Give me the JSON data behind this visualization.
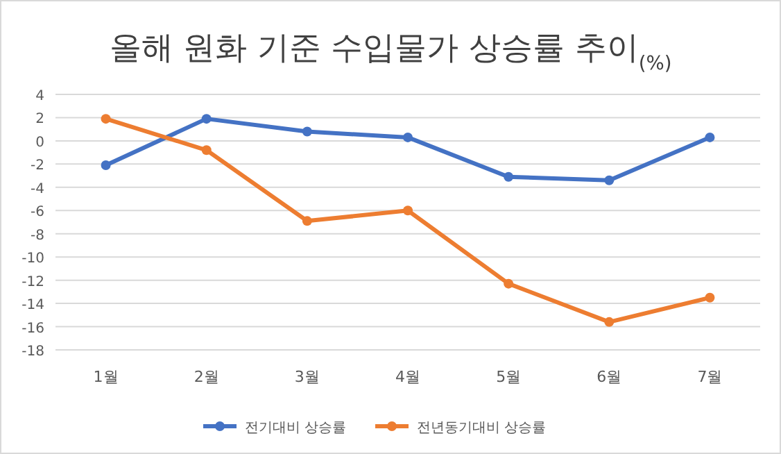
{
  "chart_data": {
    "type": "line",
    "title": "올해 원화 기준 수입물가 상승률 추이$_{(%)}$",
    "categories": [
      "1월",
      "2월",
      "3월",
      "4월",
      "5월",
      "6월",
      "7월"
    ],
    "series": [
      {
        "name": "전기대비 상승률",
        "color": "#4472c4",
        "values": [
          -2.1,
          1.9,
          0.8,
          0.3,
          -3.1,
          -3.4,
          0.3
        ]
      },
      {
        "name": "전년동기대비 상승률",
        "color": "#ed7d31",
        "values": [
          1.9,
          -0.8,
          -6.9,
          -6.0,
          -12.3,
          -15.6,
          -13.5
        ]
      }
    ],
    "ylim": [
      -18,
      4
    ],
    "yticks": [
      -18,
      -16,
      -14,
      -12,
      -10,
      -8,
      -6,
      -4,
      -2,
      0,
      2,
      4
    ],
    "grid": "y",
    "legend": "bottom",
    "marker": "circle",
    "line_style": "solid"
  }
}
